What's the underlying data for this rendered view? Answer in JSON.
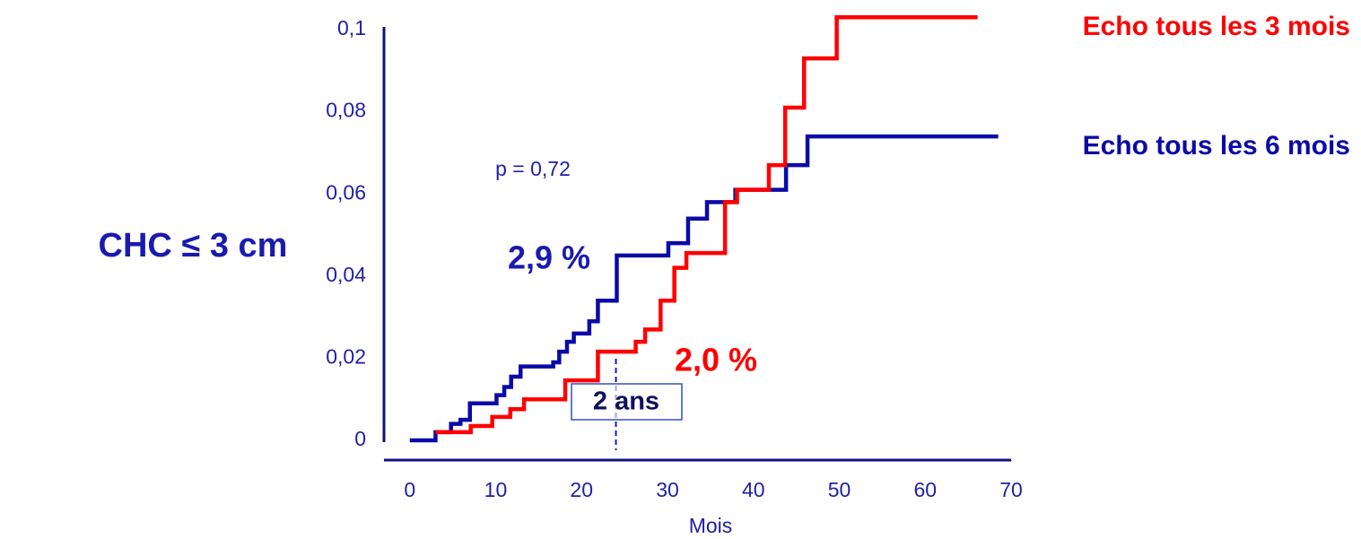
{
  "chart_data": {
    "type": "step",
    "y_label": "CHC ≤ 3 cm",
    "x_label": "Mois",
    "xlim": [
      -3,
      70
    ],
    "xticks": [
      0,
      10,
      20,
      30,
      40,
      50,
      60,
      70
    ],
    "ylim": [
      0,
      0.103
    ],
    "yticks": [
      0,
      {
        "value": 0.02,
        "label": "0,02"
      },
      {
        "value": 0.04,
        "label": "0,04"
      },
      {
        "value": 0.06,
        "label": "0,06"
      },
      {
        "value": 0.08,
        "label": "0,08"
      },
      {
        "value": 0.1,
        "label": "0,1"
      }
    ],
    "series": [
      {
        "name": "Echo tous les 6 mois",
        "color": "#0a0aa8",
        "x": [
          0,
          3,
          4.8,
          5.9,
          7,
          10.1,
          11,
          11.8,
          12.9,
          16.7,
          17.4,
          18.3,
          19.1,
          20.9,
          21.9,
          24.1,
          30.1,
          32.4,
          34.6,
          37.9,
          43.8,
          46.3,
          68.5
        ],
        "values": [
          0,
          0.002,
          0.004,
          0.005,
          0.009,
          0.011,
          0.013,
          0.0155,
          0.018,
          0.019,
          0.0216,
          0.024,
          0.026,
          0.029,
          0.034,
          0.045,
          0.048,
          0.054,
          0.058,
          0.061,
          0.067,
          0.074,
          0.074
        ]
      },
      {
        "name": "Echo tous les 3 mois",
        "color": "#ff0000",
        "x": [
          3,
          7.1,
          9.6,
          11.7,
          13.3,
          18.1,
          21.9,
          26.3,
          27.4,
          29.2,
          30.8,
          32.2,
          36.7,
          38.1,
          41.8,
          43.7,
          45.9,
          49.7,
          66.1
        ],
        "values": [
          0.002,
          0.0035,
          0.0057,
          0.0076,
          0.01,
          0.0146,
          0.0216,
          0.024,
          0.027,
          0.034,
          0.042,
          0.0456,
          0.058,
          0.061,
          0.067,
          0.081,
          0.093,
          0.103,
          0.103
        ]
      }
    ],
    "annotations": [
      "p = 0,72",
      "2,9 %",
      "2,0 %"
    ],
    "reference_line": {
      "x": 24,
      "label": "2 ans"
    }
  }
}
